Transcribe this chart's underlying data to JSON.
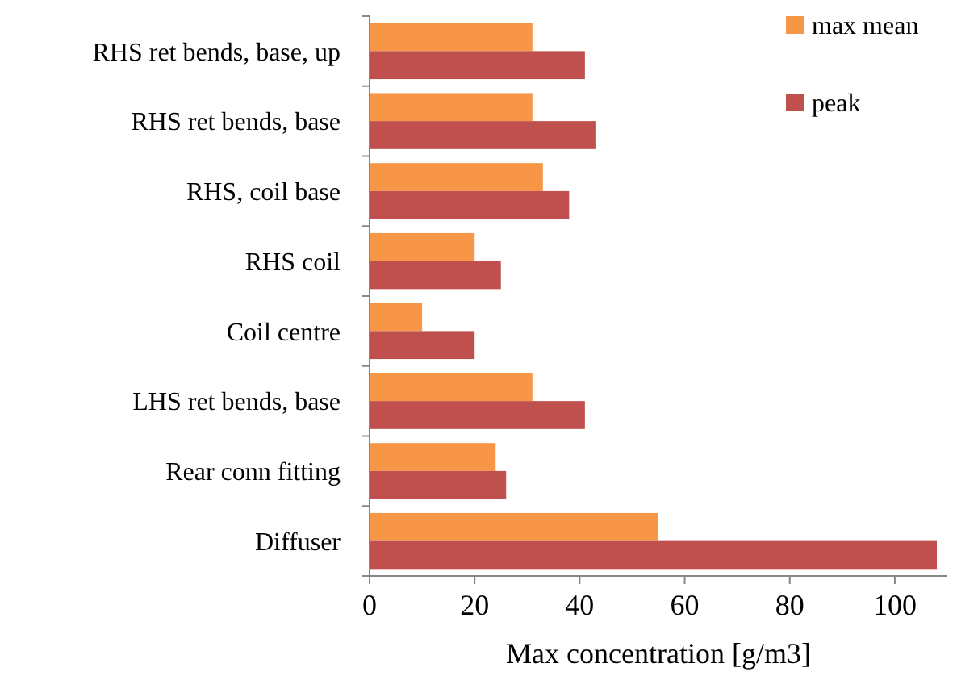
{
  "chart_data": {
    "type": "bar",
    "orientation": "horizontal",
    "xlabel": "Max concentration [g/m3]",
    "categories": [
      "RHS ret bends, base, up",
      "RHS ret bends, base",
      "RHS, coil base",
      "RHS coil",
      "Coil centre",
      "LHS ret bends, base",
      "Rear conn fitting",
      "Diffuser"
    ],
    "series": [
      {
        "name": "max mean",
        "color": "#f79646",
        "values": [
          31,
          31,
          33,
          20,
          10,
          31,
          24,
          55
        ]
      },
      {
        "name": "peak",
        "color": "#c0504d",
        "values": [
          41,
          43,
          38,
          25,
          20,
          41,
          26,
          108
        ]
      }
    ],
    "xlim": [
      0,
      110
    ],
    "xticks": [
      0,
      20,
      40,
      60,
      80,
      100
    ],
    "grid": false,
    "legend": "top right"
  }
}
